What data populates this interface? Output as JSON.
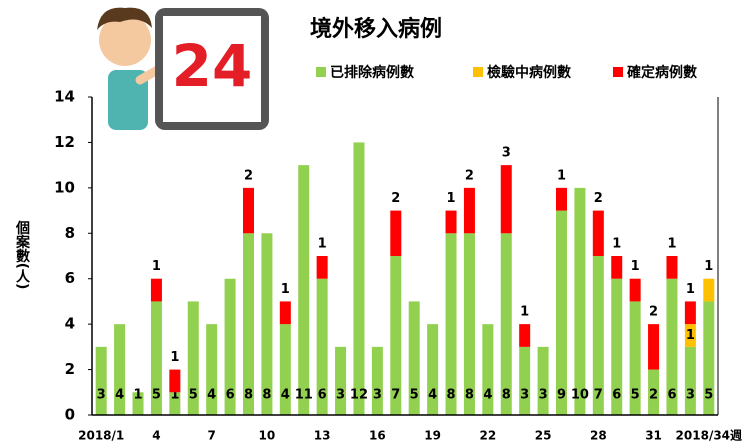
{
  "badge": "24",
  "chart_data": {
    "type": "stacked_bar",
    "title": "境外移入病例",
    "y_label": "個案數(人)",
    "categories": [
      "2018/1",
      null,
      null,
      "4",
      null,
      null,
      "7",
      null,
      null,
      "10",
      null,
      null,
      "13",
      null,
      null,
      "16",
      null,
      null,
      "19",
      null,
      null,
      "22",
      null,
      null,
      "25",
      null,
      null,
      "28",
      null,
      null,
      "31",
      null,
      null,
      "2018/34週"
    ],
    "series": [
      {
        "name": "已排除病例數",
        "color": "#92d050",
        "values": [
          3,
          4,
          1,
          5,
          1,
          5,
          4,
          6,
          8,
          8,
          4,
          11,
          6,
          3,
          12,
          3,
          7,
          5,
          4,
          8,
          8,
          4,
          8,
          3,
          3,
          9,
          10,
          7,
          6,
          5,
          2,
          6,
          3,
          5
        ]
      },
      {
        "name": "檢驗中病例數",
        "color": "#ffc000",
        "values": [
          0,
          0,
          0,
          0,
          0,
          0,
          0,
          0,
          0,
          0,
          0,
          0,
          0,
          0,
          0,
          0,
          0,
          0,
          0,
          0,
          0,
          0,
          0,
          0,
          0,
          0,
          0,
          0,
          0,
          0,
          0,
          0,
          1,
          1
        ]
      },
      {
        "name": "確定病例數",
        "color": "#ff0000",
        "values": [
          0,
          0,
          0,
          1,
          1,
          0,
          0,
          0,
          2,
          0,
          1,
          0,
          1,
          0,
          0,
          0,
          2,
          0,
          0,
          1,
          2,
          0,
          3,
          1,
          0,
          1,
          0,
          2,
          1,
          1,
          2,
          1,
          1,
          0
        ]
      }
    ],
    "ylim": [
      0,
      14
    ],
    "yticks": [
      0,
      2,
      4,
      6,
      8,
      10,
      12,
      14
    ]
  }
}
